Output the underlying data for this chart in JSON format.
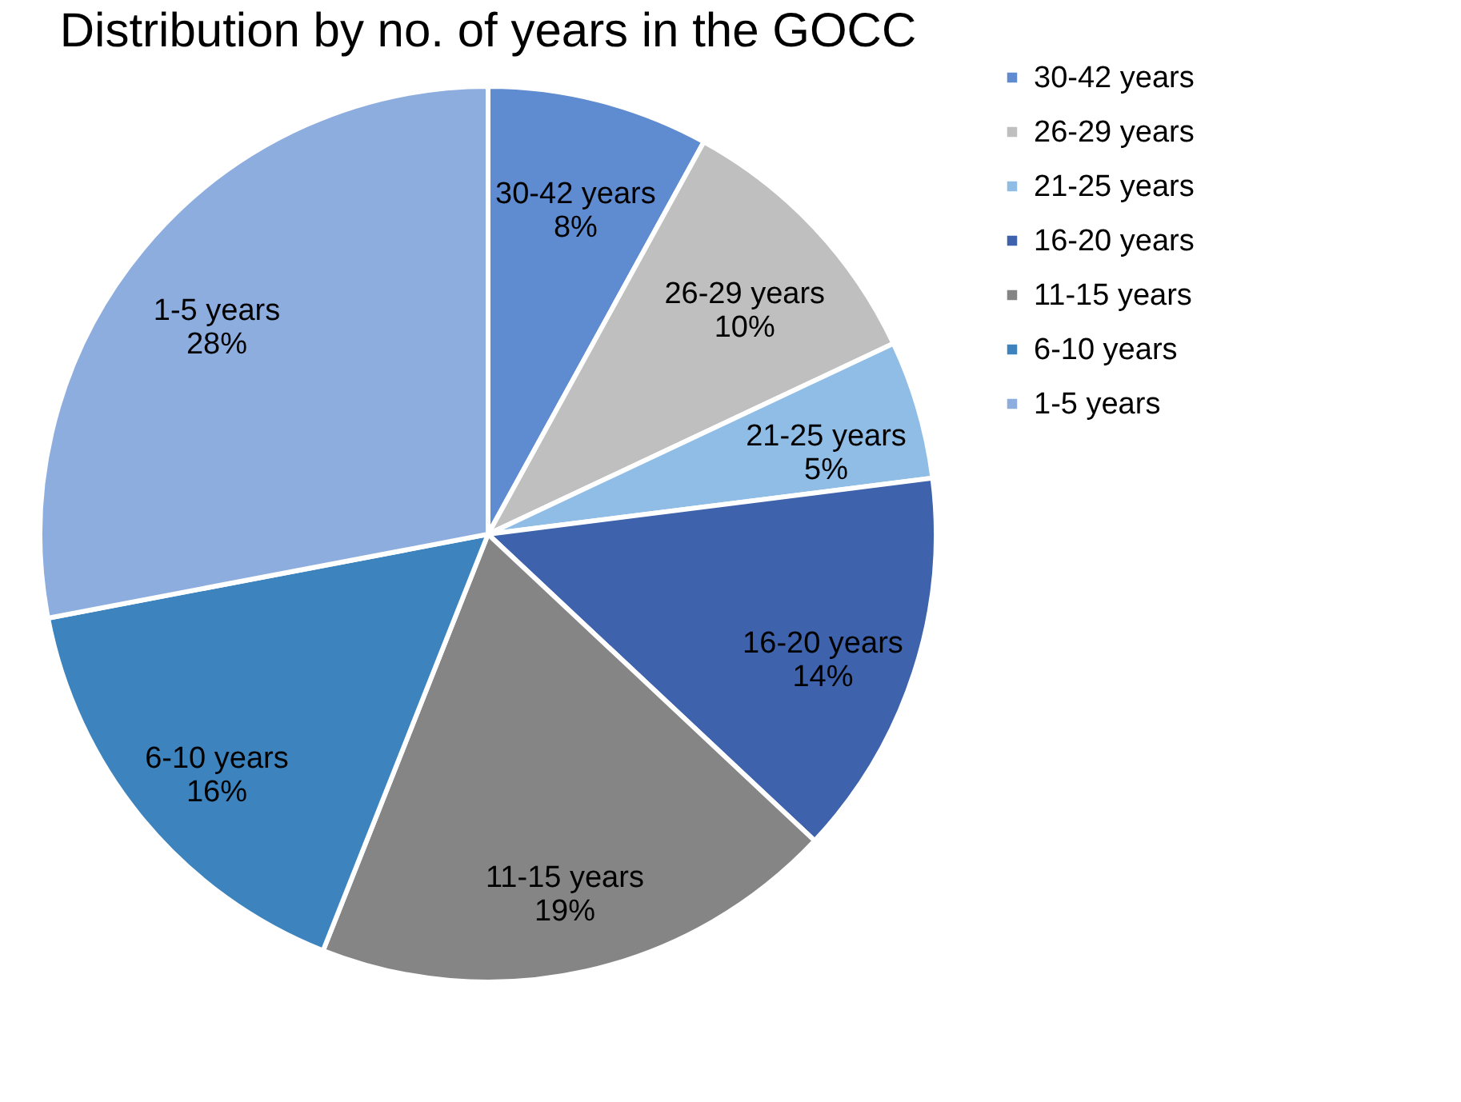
{
  "chart_data": {
    "type": "pie",
    "title": "Distribution by no. of years in the GOCC",
    "categories": [
      "30-42 years",
      "26-29 years",
      "21-25 years",
      "16-20 years",
      "11-15 years",
      "6-10 years",
      "1-5 years"
    ],
    "values": [
      8,
      10,
      5,
      14,
      19,
      16,
      28
    ],
    "value_labels": [
      "8%",
      "10%",
      "5%",
      "14%",
      "19%",
      "16%",
      "28%"
    ],
    "colors": [
      "#5f8bd0",
      "#bfbfbf",
      "#8fbde6",
      "#3e62ab",
      "#858585",
      "#3d84bf",
      "#8dadde"
    ],
    "legend": "right"
  }
}
